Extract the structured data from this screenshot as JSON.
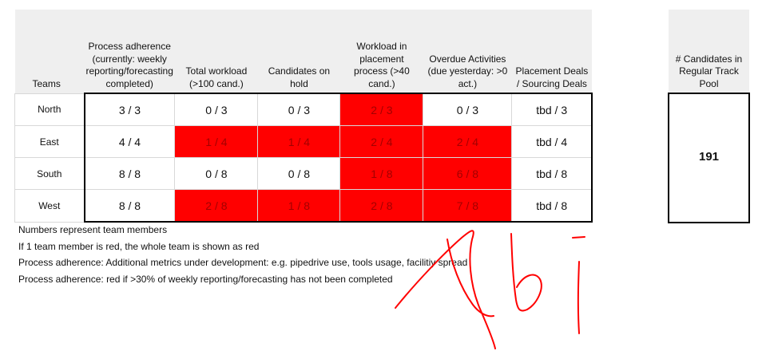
{
  "team_table": {
    "headers": [
      "Teams",
      "Process adherence (currently: weekly reporting/forecasting completed)",
      "Total workload (>100 cand.)",
      "Candidates on hold",
      "Workload in placement process (>40 cand.)",
      "Overdue Activities (due yesterday: >0 act.)",
      "Placement Deals / Sourcing Deals"
    ],
    "rows": [
      {
        "team": "North",
        "values": [
          "3 / 3",
          "0 / 3",
          "0 / 3",
          "2 / 3",
          "0 / 3",
          "tbd / 3"
        ],
        "red": [
          false,
          false,
          false,
          true,
          false,
          false
        ]
      },
      {
        "team": "East",
        "values": [
          "4 / 4",
          "1 / 4",
          "1 / 4",
          "2 / 4",
          "2 / 4",
          "tbd / 4"
        ],
        "red": [
          false,
          true,
          true,
          true,
          true,
          false
        ]
      },
      {
        "team": "South",
        "values": [
          "8 / 8",
          "0 / 8",
          "0 / 8",
          "1 / 8",
          "6 / 8",
          "tbd / 8"
        ],
        "red": [
          false,
          false,
          false,
          true,
          true,
          false
        ]
      },
      {
        "team": "West",
        "values": [
          "8 / 8",
          "2 / 8",
          "1 / 8",
          "2 / 8",
          "7 / 8",
          "tbd / 8"
        ],
        "red": [
          false,
          true,
          true,
          true,
          true,
          false
        ]
      }
    ]
  },
  "pool": {
    "header": "# Candidates in Regular Track Pool",
    "value": "191"
  },
  "notes": [
    "Numbers represent team members",
    "If 1 team member is red, the whole team is shown as red",
    "Process adherence: Additional metrics under development: e.g. pipedrive use, tools usage, facilitiy spread",
    "Process adherence: red if >30% of weekly reporting/forecasting has not been completed"
  ],
  "colors": {
    "alert_red": "#ff0000",
    "alert_text": "#a30000",
    "header_gray": "#efefef",
    "ink_red": "#ff0000"
  }
}
